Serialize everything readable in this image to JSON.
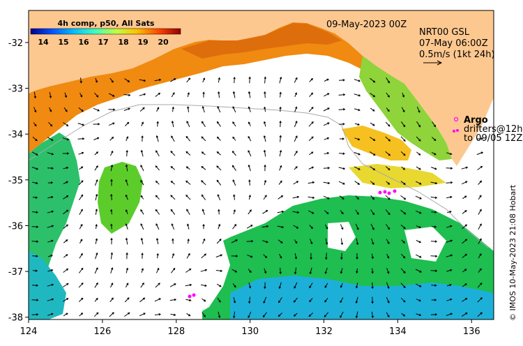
{
  "map": {
    "date_label": "09-May-2023 00Z",
    "product_label": "NRT00 GSL",
    "current_time_label": "07-May 06:00Z",
    "arrow_scale_label": "0.5m/s (1kt 24h)",
    "argo_label": "Argo",
    "drifters_label": "drifters@12h",
    "drifters_period_label": "to 09/05 12Z",
    "credit": "© IMOS 10-May-2023 21:08 Hobart",
    "colorbar": {
      "title": "4h comp, p50, All Sats",
      "ticks": [
        "14",
        "15",
        "16",
        "17",
        "18",
        "19",
        "20"
      ],
      "colors": [
        "#00008f",
        "#0050ff",
        "#00c0ff",
        "#40ffbf",
        "#c0ff40",
        "#ffc000",
        "#ff4000",
        "#8f0000"
      ]
    },
    "lon_ticks": [
      "124",
      "126",
      "128",
      "130",
      "132",
      "134",
      "136"
    ],
    "lat_ticks": [
      "-32",
      "-33",
      "-34",
      "-35",
      "-36",
      "-37",
      "-38"
    ],
    "extent": {
      "lon_min": 124,
      "lon_max": 136.6,
      "lat_min": -38.05,
      "lat_max": -31.3
    },
    "colors": {
      "land": "#fdc890",
      "ocean_blank": "#ffffff",
      "argo": "#ff00ff"
    }
  }
}
